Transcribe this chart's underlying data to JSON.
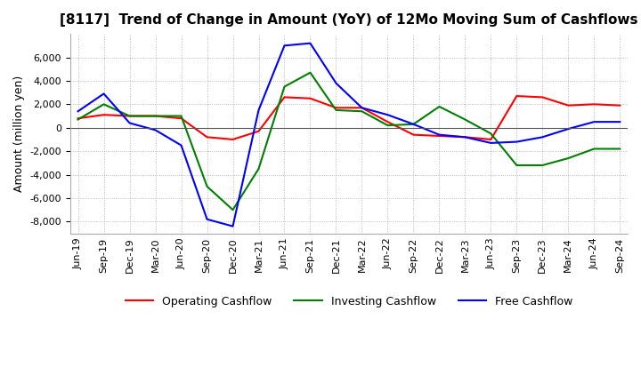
{
  "title": "[8117]  Trend of Change in Amount (YoY) of 12Mo Moving Sum of Cashflows",
  "ylabel": "Amount (million yen)",
  "ylim": [
    -9000,
    8000
  ],
  "yticks": [
    -8000,
    -6000,
    -4000,
    -2000,
    0,
    2000,
    4000,
    6000
  ],
  "background_color": "#ffffff",
  "grid_color": "#aaaaaa",
  "dates": [
    "Jun-19",
    "Sep-19",
    "Dec-19",
    "Mar-20",
    "Jun-20",
    "Sep-20",
    "Dec-20",
    "Mar-21",
    "Jun-21",
    "Sep-21",
    "Dec-21",
    "Mar-22",
    "Jun-22",
    "Sep-22",
    "Dec-22",
    "Mar-23",
    "Jun-23",
    "Sep-23",
    "Dec-23",
    "Mar-24",
    "Jun-24",
    "Sep-24"
  ],
  "operating": [
    800,
    1100,
    1000,
    1000,
    800,
    -800,
    -1000,
    -300,
    2600,
    2500,
    1700,
    1700,
    500,
    -600,
    -700,
    -800,
    -1000,
    2700,
    2600,
    1900,
    2000,
    1900
  ],
  "investing": [
    700,
    2000,
    1000,
    1000,
    1000,
    -5000,
    -7000,
    -3500,
    3500,
    4700,
    1500,
    1400,
    200,
    300,
    1800,
    700,
    -500,
    -3200,
    -3200,
    -2600,
    -1800,
    -1800
  ],
  "free": [
    1400,
    2900,
    400,
    -200,
    -1500,
    -7800,
    -8400,
    1500,
    7000,
    7200,
    3800,
    1700,
    1100,
    300,
    -600,
    -800,
    -1300,
    -1200,
    -800,
    -100,
    500,
    500
  ],
  "operating_color": "#ff0000",
  "investing_color": "#008000",
  "free_color": "#0000ff",
  "legend_labels": [
    "Operating Cashflow",
    "Investing Cashflow",
    "Free Cashflow"
  ],
  "title_fontsize": 11,
  "axis_fontsize": 9,
  "tick_fontsize": 8
}
